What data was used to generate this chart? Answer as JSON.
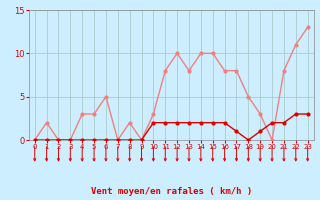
{
  "x": [
    0,
    1,
    2,
    3,
    4,
    5,
    6,
    7,
    8,
    9,
    10,
    11,
    12,
    13,
    14,
    15,
    16,
    17,
    18,
    19,
    20,
    21,
    22,
    23
  ],
  "rafales": [
    0,
    2,
    0,
    0,
    3,
    3,
    5,
    0,
    2,
    0,
    3,
    8,
    10,
    8,
    10,
    10,
    8,
    8,
    5,
    3,
    0,
    8,
    11,
    13
  ],
  "vent_moyen": [
    0,
    0,
    0,
    0,
    0,
    0,
    0,
    0,
    0,
    0,
    2,
    2,
    2,
    2,
    2,
    2,
    2,
    1,
    0,
    1,
    2,
    2,
    3,
    3
  ],
  "rafales_color": "#f08080",
  "vent_moyen_color": "#dd0000",
  "arrow_color": "#dd0000",
  "background_color": "#cceeff",
  "grid_color": "#aacccc",
  "xlabel": "Vent moyen/en rafales ( km/h )",
  "xlabel_color": "#dd0000",
  "yticks": [
    0,
    5,
    10,
    15
  ],
  "ylim": [
    0,
    15
  ],
  "xlim": [
    -0.5,
    23.5
  ]
}
